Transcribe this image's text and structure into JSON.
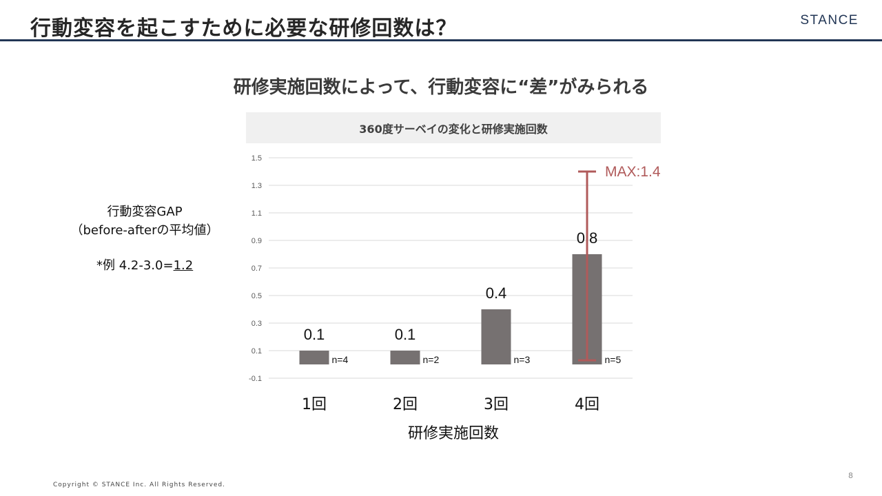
{
  "header": {
    "title": "行動変容を起こすために必要な研修回数は？",
    "logo": "STANCE"
  },
  "subtitle": "研修実施回数によって、行動変容に“差”がみられる",
  "chart_banner": "360度サーベイの変化と研修実施回数",
  "y_axis_note": {
    "line1": "行動変容GAP",
    "line2": "（before-afterの平均値）",
    "example_prefix": "*例 4.2-3.0=",
    "example_value": "1.2"
  },
  "chart_data": {
    "type": "bar",
    "title": "360度サーベイの変化と研修実施回数",
    "xlabel": "研修実施回数",
    "ylabel": "",
    "categories": [
      "1回",
      "2回",
      "3回",
      "4回"
    ],
    "values": [
      0.1,
      0.1,
      0.4,
      0.8
    ],
    "data_labels": [
      "0.1",
      "0.1",
      "0.4",
      "0.8"
    ],
    "sample_sizes": [
      "n=4",
      "n=2",
      "n=3",
      "n=5"
    ],
    "ylim": [
      -0.1,
      1.5
    ],
    "yticks": [
      "-0.1",
      "0.1",
      "0.3",
      "0.5",
      "0.7",
      "0.9",
      "1.1",
      "1.3",
      "1.5"
    ],
    "grid": true,
    "bar_color": "#767171",
    "range_annotation": {
      "category": "4回",
      "low": 0.03,
      "high": 1.4,
      "label": "MAX:1.4",
      "color": "#b05a5a"
    }
  },
  "footer": {
    "page_number": "8",
    "copyright": "Copyright © STANCE Inc. All Rights Reserved."
  }
}
